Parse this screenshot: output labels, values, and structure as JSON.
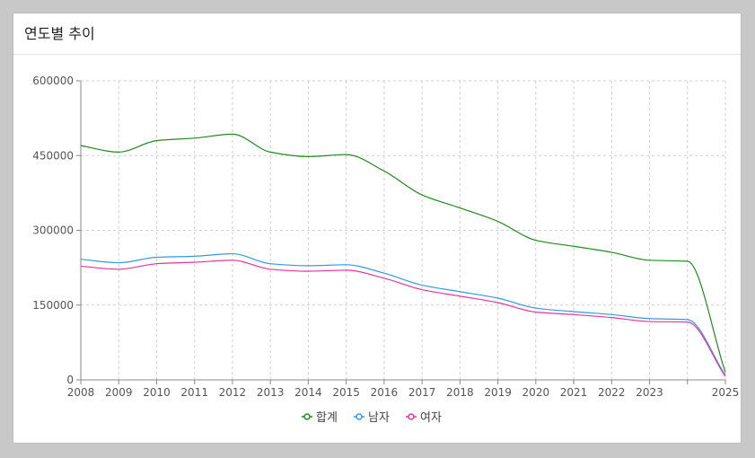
{
  "panel": {
    "title": "연도별 추이"
  },
  "chart_data": {
    "type": "line",
    "title": "",
    "xlabel": "",
    "ylabel": "",
    "x": [
      2008,
      2009,
      2010,
      2011,
      2012,
      2013,
      2014,
      2015,
      2016,
      2017,
      2018,
      2019,
      2020,
      2021,
      2022,
      2023,
      2024,
      2025
    ],
    "x_tick_labels": [
      "2008",
      "2009",
      "2010",
      "2011",
      "2012",
      "2013",
      "2014",
      "2015",
      "2016",
      "2017",
      "2018",
      "2019",
      "2020",
      "2021",
      "2022",
      "2023",
      "",
      "2025"
    ],
    "ylim": [
      0,
      600000
    ],
    "y_ticks": [
      0,
      150000,
      300000,
      450000,
      600000
    ],
    "grid": true,
    "legend_position": "bottom",
    "series": [
      {
        "name": "합계",
        "color": "#1e8c1e",
        "values": [
          470000,
          457000,
          480000,
          485000,
          493000,
          457000,
          448000,
          452000,
          419000,
          371000,
          345000,
          318000,
          280000,
          268000,
          256000,
          240000,
          238000,
          15000
        ]
      },
      {
        "name": "남자",
        "color": "#3399e6",
        "values": [
          242000,
          235000,
          246000,
          248000,
          253000,
          233000,
          229000,
          231000,
          214000,
          190000,
          177000,
          164000,
          144000,
          137000,
          131000,
          123000,
          121000,
          9000
        ]
      },
      {
        "name": "여자",
        "color": "#e6349b",
        "values": [
          228000,
          222000,
          233000,
          236000,
          240000,
          222000,
          218000,
          220000,
          204000,
          181000,
          168000,
          155000,
          136000,
          131000,
          125000,
          117000,
          116000,
          7000
        ]
      }
    ]
  }
}
